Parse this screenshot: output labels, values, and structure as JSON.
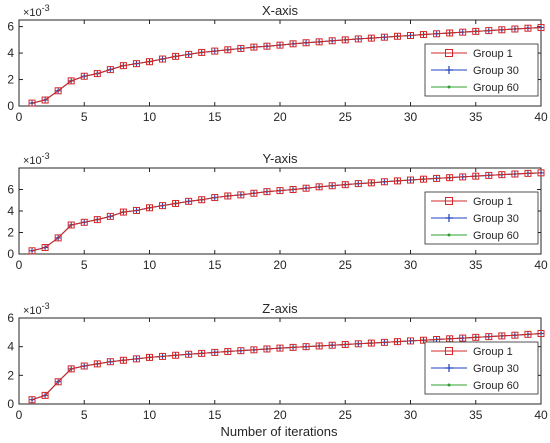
{
  "figure": {
    "xlabel": "Number of iterations"
  },
  "chart_data": [
    {
      "type": "line",
      "title": "X-axis",
      "xlabel": "",
      "ylabel": "",
      "y_exponent_label": "×10",
      "y_exponent_power": "-3",
      "xlim": [
        0,
        40
      ],
      "ylim": [
        0,
        6.5
      ],
      "xticks": [
        0,
        5,
        10,
        15,
        20,
        25,
        30,
        35,
        40
      ],
      "yticks": [
        0,
        2,
        4,
        6
      ],
      "grid": false,
      "legend_position": "center-right",
      "x": [
        1,
        2,
        3,
        4,
        5,
        6,
        7,
        8,
        9,
        10,
        11,
        12,
        13,
        14,
        15,
        16,
        17,
        18,
        19,
        20,
        21,
        22,
        23,
        24,
        25,
        26,
        27,
        28,
        29,
        30,
        31,
        32,
        33,
        34,
        35,
        36,
        37,
        38,
        39,
        40
      ],
      "series": [
        {
          "name": "Group 1",
          "color": "#d62728",
          "marker": "square",
          "values": [
            0.22,
            0.45,
            1.15,
            1.9,
            2.25,
            2.45,
            2.75,
            3.05,
            3.2,
            3.35,
            3.55,
            3.75,
            3.9,
            4.05,
            4.15,
            4.25,
            4.35,
            4.45,
            4.52,
            4.6,
            4.7,
            4.78,
            4.85,
            4.93,
            5.0,
            5.07,
            5.13,
            5.2,
            5.27,
            5.33,
            5.4,
            5.46,
            5.52,
            5.58,
            5.64,
            5.7,
            5.76,
            5.82,
            5.88,
            5.93
          ]
        },
        {
          "name": "Group 30",
          "color": "#1f3fbf",
          "marker": "plus",
          "values": [
            0.22,
            0.45,
            1.15,
            1.9,
            2.25,
            2.45,
            2.75,
            3.05,
            3.2,
            3.35,
            3.55,
            3.75,
            3.9,
            4.05,
            4.15,
            4.25,
            4.35,
            4.45,
            4.52,
            4.6,
            4.7,
            4.78,
            4.85,
            4.93,
            5.0,
            5.07,
            5.13,
            5.2,
            5.27,
            5.33,
            5.4,
            5.46,
            5.52,
            5.58,
            5.64,
            5.7,
            5.76,
            5.82,
            5.88,
            5.93
          ]
        },
        {
          "name": "Group 60",
          "color": "#2ca02c",
          "marker": "dot",
          "values": [
            0.22,
            0.45,
            1.15,
            1.9,
            2.25,
            2.45,
            2.75,
            3.05,
            3.2,
            3.35,
            3.55,
            3.75,
            3.9,
            4.05,
            4.15,
            4.25,
            4.35,
            4.45,
            4.52,
            4.6,
            4.7,
            4.78,
            4.85,
            4.93,
            5.0,
            5.07,
            5.13,
            5.2,
            5.27,
            5.33,
            5.4,
            5.46,
            5.52,
            5.58,
            5.64,
            5.7,
            5.76,
            5.82,
            5.88,
            5.93
          ]
        }
      ]
    },
    {
      "type": "line",
      "title": "Y-axis",
      "xlabel": "",
      "ylabel": "",
      "y_exponent_label": "×10",
      "y_exponent_power": "-3",
      "xlim": [
        0,
        40
      ],
      "ylim": [
        0,
        8
      ],
      "xticks": [
        0,
        5,
        10,
        15,
        20,
        25,
        30,
        35,
        40
      ],
      "yticks": [
        0,
        2,
        4,
        6
      ],
      "grid": false,
      "legend_position": "center-right",
      "x": [
        1,
        2,
        3,
        4,
        5,
        6,
        7,
        8,
        9,
        10,
        11,
        12,
        13,
        14,
        15,
        16,
        17,
        18,
        19,
        20,
        21,
        22,
        23,
        24,
        25,
        26,
        27,
        28,
        29,
        30,
        31,
        32,
        33,
        34,
        35,
        36,
        37,
        38,
        39,
        40
      ],
      "series": [
        {
          "name": "Group 1",
          "color": "#d62728",
          "marker": "square",
          "values": [
            0.3,
            0.6,
            1.5,
            2.7,
            2.95,
            3.2,
            3.5,
            3.9,
            4.05,
            4.3,
            4.5,
            4.7,
            4.9,
            5.05,
            5.25,
            5.4,
            5.5,
            5.65,
            5.8,
            5.9,
            6.0,
            6.12,
            6.25,
            6.35,
            6.45,
            6.55,
            6.62,
            6.72,
            6.8,
            6.88,
            6.96,
            7.03,
            7.1,
            7.17,
            7.24,
            7.31,
            7.38,
            7.44,
            7.5,
            7.55
          ]
        },
        {
          "name": "Group 30",
          "color": "#1f3fbf",
          "marker": "plus",
          "values": [
            0.3,
            0.6,
            1.5,
            2.7,
            2.95,
            3.2,
            3.5,
            3.9,
            4.05,
            4.3,
            4.5,
            4.7,
            4.9,
            5.05,
            5.25,
            5.4,
            5.5,
            5.65,
            5.8,
            5.9,
            6.0,
            6.12,
            6.25,
            6.35,
            6.45,
            6.55,
            6.62,
            6.72,
            6.8,
            6.88,
            6.96,
            7.03,
            7.1,
            7.17,
            7.24,
            7.31,
            7.38,
            7.44,
            7.5,
            7.55
          ]
        },
        {
          "name": "Group 60",
          "color": "#2ca02c",
          "marker": "dot",
          "values": [
            0.3,
            0.6,
            1.5,
            2.7,
            2.95,
            3.2,
            3.5,
            3.9,
            4.05,
            4.3,
            4.5,
            4.7,
            4.9,
            5.05,
            5.25,
            5.4,
            5.5,
            5.65,
            5.8,
            5.9,
            6.0,
            6.12,
            6.25,
            6.35,
            6.45,
            6.55,
            6.62,
            6.72,
            6.8,
            6.88,
            6.96,
            7.03,
            7.1,
            7.17,
            7.24,
            7.31,
            7.38,
            7.44,
            7.5,
            7.55
          ]
        }
      ]
    },
    {
      "type": "line",
      "title": "Z-axis",
      "xlabel": "Number of iterations",
      "ylabel": "",
      "y_exponent_label": "×10",
      "y_exponent_power": "-3",
      "xlim": [
        0,
        40
      ],
      "ylim": [
        0,
        6
      ],
      "xticks": [
        0,
        5,
        10,
        15,
        20,
        25,
        30,
        35,
        40
      ],
      "yticks": [
        0,
        2,
        4,
        6
      ],
      "grid": false,
      "legend_position": "center-right",
      "x": [
        1,
        2,
        3,
        4,
        5,
        6,
        7,
        8,
        9,
        10,
        11,
        12,
        13,
        14,
        15,
        16,
        17,
        18,
        19,
        20,
        21,
        22,
        23,
        24,
        25,
        26,
        27,
        28,
        29,
        30,
        31,
        32,
        33,
        34,
        35,
        36,
        37,
        38,
        39,
        40
      ],
      "series": [
        {
          "name": "Group 1",
          "color": "#d62728",
          "marker": "square",
          "values": [
            0.3,
            0.6,
            1.55,
            2.45,
            2.65,
            2.8,
            2.95,
            3.05,
            3.15,
            3.25,
            3.32,
            3.4,
            3.47,
            3.53,
            3.6,
            3.66,
            3.72,
            3.78,
            3.84,
            3.9,
            3.95,
            4.0,
            4.05,
            4.1,
            4.15,
            4.2,
            4.25,
            4.3,
            4.35,
            4.4,
            4.45,
            4.5,
            4.55,
            4.6,
            4.65,
            4.7,
            4.75,
            4.8,
            4.86,
            4.92
          ]
        },
        {
          "name": "Group 30",
          "color": "#1f3fbf",
          "marker": "plus",
          "values": [
            0.3,
            0.6,
            1.55,
            2.45,
            2.65,
            2.8,
            2.95,
            3.05,
            3.15,
            3.25,
            3.32,
            3.4,
            3.47,
            3.53,
            3.6,
            3.66,
            3.72,
            3.78,
            3.84,
            3.9,
            3.95,
            4.0,
            4.05,
            4.1,
            4.15,
            4.2,
            4.25,
            4.3,
            4.35,
            4.4,
            4.45,
            4.5,
            4.55,
            4.6,
            4.65,
            4.7,
            4.75,
            4.8,
            4.86,
            4.92
          ]
        },
        {
          "name": "Group 60",
          "color": "#2ca02c",
          "marker": "dot",
          "values": [
            0.3,
            0.6,
            1.55,
            2.45,
            2.65,
            2.8,
            2.95,
            3.05,
            3.15,
            3.25,
            3.32,
            3.4,
            3.47,
            3.53,
            3.6,
            3.66,
            3.72,
            3.78,
            3.84,
            3.9,
            3.95,
            4.0,
            4.05,
            4.1,
            4.15,
            4.2,
            4.25,
            4.3,
            4.35,
            4.4,
            4.45,
            4.5,
            4.55,
            4.6,
            4.65,
            4.7,
            4.75,
            4.8,
            4.86,
            4.92
          ]
        }
      ]
    }
  ]
}
